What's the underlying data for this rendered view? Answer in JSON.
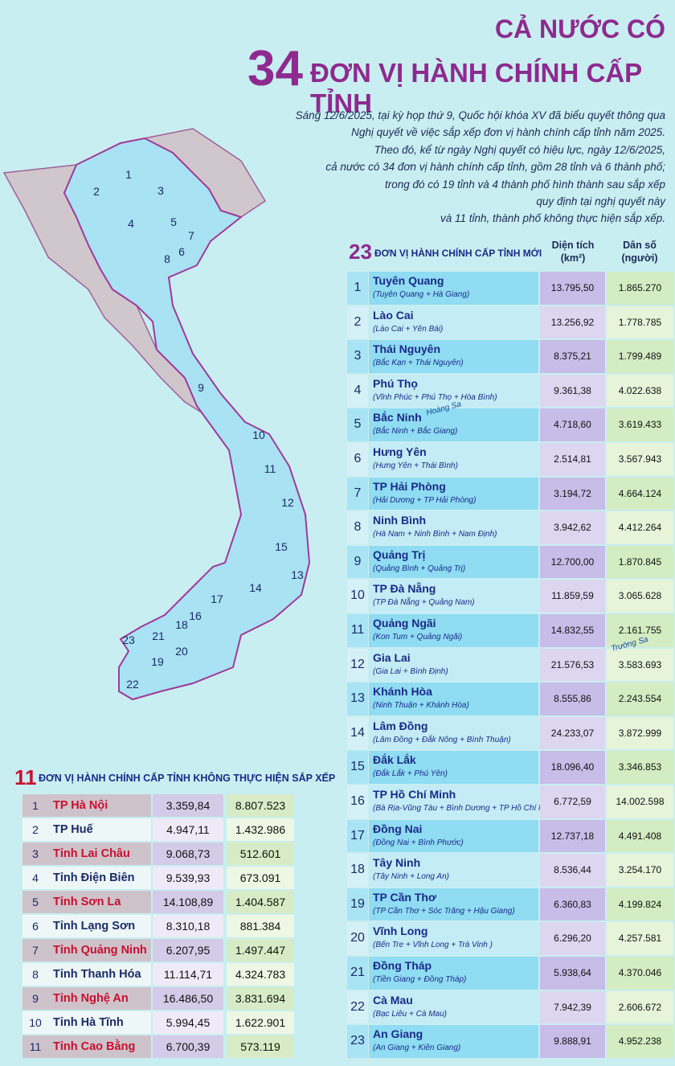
{
  "header": {
    "title_line1": "CẢ NƯỚC CÓ",
    "title_number": "34",
    "title_line2": "ĐƠN VỊ HÀNH CHÍNH CẤP TỈNH",
    "intro": [
      "Sáng 12/6/2025, tại kỳ họp thứ 9, Quốc hội khóa XV đã biểu quyết thông qua",
      "Nghị quyết về việc sắp xếp đơn vị hành chính cấp tỉnh năm 2025.",
      "Theo đó, kể từ ngày Nghị quyết có hiệu lực, ngày 12/6/2025,",
      "cả nước có 34 đơn vị hành chính cấp tỉnh, gồm 28 tỉnh và 6 thành phố;",
      "trong đó có 19 tỉnh và 4 thành phố hình thành sau sắp xếp",
      "quy định tại nghị quyết này",
      "và 11 tỉnh, thành phố không thực hiện sắp xếp."
    ]
  },
  "map": {
    "labels": [
      "1",
      "2",
      "3",
      "4",
      "5",
      "6",
      "7",
      "8",
      "9",
      "10",
      "11",
      "12",
      "13",
      "14",
      "15",
      "16",
      "17",
      "18",
      "19",
      "20",
      "21",
      "22",
      "23"
    ],
    "hoang_sa": "Hoàng Sa",
    "truong_sa": "Trường Sa"
  },
  "new_units": {
    "count": "23",
    "title": "ĐƠN VỊ HÀNH CHÍNH CẤP TỈNH MỚI",
    "area_header": [
      "Diện tích",
      "(km²)"
    ],
    "pop_header": [
      "Dân số",
      "(người)"
    ],
    "rows": [
      [
        "1",
        "Tuyên Quang",
        "(Tuyên Quang + Hà Giang)",
        "13.795,50",
        "1.865.270"
      ],
      [
        "2",
        "Lào Cai",
        "(Lào Cai + Yên Bái)",
        "13.256,92",
        "1.778.785"
      ],
      [
        "3",
        "Thái Nguyên",
        "(Bắc Kạn + Thái Nguyên)",
        "8.375,21",
        "1.799.489"
      ],
      [
        "4",
        "Phú Thọ",
        "(Vĩnh Phúc + Phú Thọ + Hòa Bình)",
        "9.361,38",
        "4.022.638"
      ],
      [
        "5",
        "Bắc Ninh",
        "(Bắc Ninh + Bắc Giang)",
        "4.718,60",
        "3.619.433"
      ],
      [
        "6",
        "Hưng Yên",
        "(Hưng Yên + Thái Bình)",
        "2.514,81",
        "3.567.943"
      ],
      [
        "7",
        "TP Hải Phòng",
        "(Hải Dương + TP Hải Phòng)",
        "3.194,72",
        "4.664.124"
      ],
      [
        "8",
        "Ninh Bình",
        "(Hà Nam + Ninh Bình + Nam Định)",
        "3.942,62",
        "4.412.264"
      ],
      [
        "9",
        "Quảng Trị",
        "(Quảng Bình + Quảng Trị)",
        "12.700,00",
        "1.870.845"
      ],
      [
        "10",
        "TP Đà Nẵng",
        "(TP Đà Nẵng + Quảng Nam)",
        "11.859,59",
        "3.065.628"
      ],
      [
        "11",
        "Quảng Ngãi",
        "(Kon Tum + Quảng Ngãi)",
        "14.832,55",
        "2.161.755"
      ],
      [
        "12",
        "Gia Lai",
        "(Gia Lai + Bình Định)",
        "21.576,53",
        "3.583.693"
      ],
      [
        "13",
        "Khánh Hòa",
        "(Ninh Thuận + Khánh Hòa)",
        "8.555,86",
        "2.243.554"
      ],
      [
        "14",
        "Lâm Đồng",
        "(Lâm Đồng + Đắk Nông + Bình Thuận)",
        "24.233,07",
        "3.872.999"
      ],
      [
        "15",
        "Đắk Lắk",
        "(Đắk Lắk + Phú Yên)",
        "18.096,40",
        "3.346.853"
      ],
      [
        "16",
        "TP Hồ Chí Minh",
        "(Bà Rịa-Vũng Tàu + Bình Dương + TP Hồ Chí Minh)",
        "6.772,59",
        "14.002.598"
      ],
      [
        "17",
        "Đồng Nai",
        "(Đồng Nai + Bình Phước)",
        "12.737,18",
        "4.491.408"
      ],
      [
        "18",
        "Tây Ninh",
        "(Tây Ninh + Long An)",
        "8.536,44",
        "3.254.170"
      ],
      [
        "19",
        "TP Cần Thơ",
        "(TP Cần Thơ + Sóc Trăng + Hậu Giang)",
        "6.360,83",
        "4.199.824"
      ],
      [
        "20",
        "Vĩnh Long",
        "(Bến Tre + Vĩnh Long + Trà Vinh )",
        "6.296,20",
        "4.257.581"
      ],
      [
        "21",
        "Đồng Tháp",
        "(Tiền Giang + Đồng Tháp)",
        "5.938,64",
        "4.370.046"
      ],
      [
        "22",
        "Cà Mau",
        "(Bạc Liêu + Cà Mau)",
        "7.942,39",
        "2.606.672"
      ],
      [
        "23",
        "An Giang",
        "(An Giang + Kiên Giang)",
        "9.888,91",
        "4.952.238"
      ]
    ]
  },
  "unchanged_units": {
    "count": "11",
    "title": "ĐƠN VỊ HÀNH CHÍNH CẤP TỈNH KHÔNG THỰC HIỆN SẮP XẾP",
    "rows": [
      [
        "1",
        "TP Hà Nội",
        "3.359,84",
        "8.807.523"
      ],
      [
        "2",
        "TP Huế",
        "4.947,11",
        "1.432.986"
      ],
      [
        "3",
        "Tỉnh Lai Châu",
        "9.068,73",
        "512.601"
      ],
      [
        "4",
        "Tỉnh Điện Biên",
        "9.539,93",
        "673.091"
      ],
      [
        "5",
        "Tỉnh Sơn La",
        "14.108,89",
        "1.404.587"
      ],
      [
        "6",
        "Tỉnh Lạng Sơn",
        "8.310,18",
        "881.384"
      ],
      [
        "7",
        "Tỉnh Quảng Ninh",
        "6.207,95",
        "1.497.447"
      ],
      [
        "8",
        "Tỉnh Thanh Hóa",
        "11.114,71",
        "4.324.783"
      ],
      [
        "9",
        "Tỉnh Nghệ An",
        "16.486,50",
        "3.831.694"
      ],
      [
        "10",
        "Tỉnh Hà Tĩnh",
        "5.994,45",
        "1.622.901"
      ],
      [
        "11",
        "Tỉnh Cao Bằng",
        "6.700,39",
        "573.119"
      ]
    ]
  }
}
